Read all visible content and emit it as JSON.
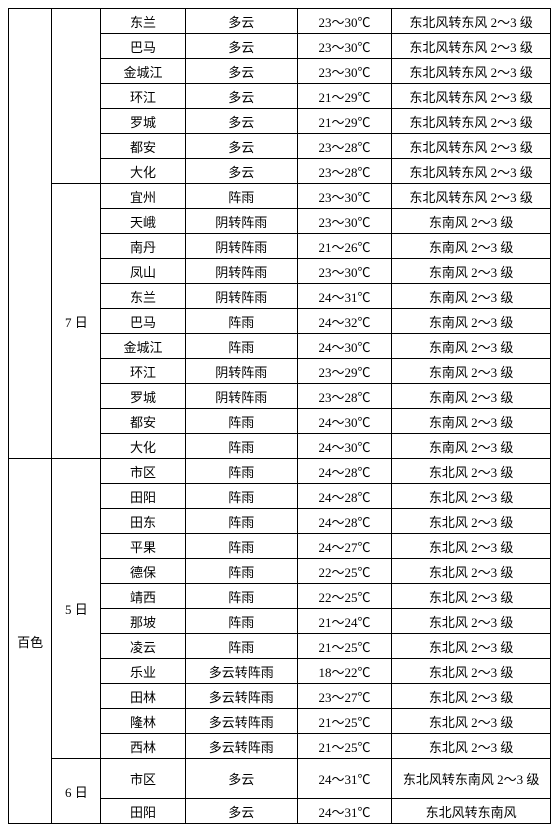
{
  "rows": [
    {
      "region": "",
      "day": "",
      "location": "东兰",
      "weather": "多云",
      "temp": "23～30℃",
      "wind": "东北风转东风 2～3 级"
    },
    {
      "region": "",
      "day": "",
      "location": "巴马",
      "weather": "多云",
      "temp": "23～30℃",
      "wind": "东北风转东风 2～3 级"
    },
    {
      "region": "",
      "day": "",
      "location": "金城江",
      "weather": "多云",
      "temp": "23～30℃",
      "wind": "东北风转东风 2～3 级"
    },
    {
      "region": "",
      "day": "",
      "location": "环江",
      "weather": "多云",
      "temp": "21～29℃",
      "wind": "东北风转东风 2～3 级"
    },
    {
      "region": "",
      "day": "",
      "location": "罗城",
      "weather": "多云",
      "temp": "21～29℃",
      "wind": "东北风转东风 2～3 级"
    },
    {
      "region": "",
      "day": "",
      "location": "都安",
      "weather": "多云",
      "temp": "23～28℃",
      "wind": "东北风转东风 2～3 级"
    },
    {
      "region": "",
      "day": "",
      "location": "大化",
      "weather": "多云",
      "temp": "23～28℃",
      "wind": "东北风转东风 2～3 级"
    },
    {
      "region": "",
      "day": "7 日",
      "location": "宜州",
      "weather": "阵雨",
      "temp": "23～30℃",
      "wind": "东北风转东风 2～3 级"
    },
    {
      "region": "",
      "day": "",
      "location": "天峨",
      "weather": "阴转阵雨",
      "temp": "23～30℃",
      "wind": "东南风 2～3 级"
    },
    {
      "region": "",
      "day": "",
      "location": "南丹",
      "weather": "阴转阵雨",
      "temp": "21～26℃",
      "wind": "东南风 2～3 级"
    },
    {
      "region": "",
      "day": "",
      "location": "凤山",
      "weather": "阴转阵雨",
      "temp": "23～30℃",
      "wind": "东南风 2～3 级"
    },
    {
      "region": "",
      "day": "",
      "location": "东兰",
      "weather": "阴转阵雨",
      "temp": "24～31℃",
      "wind": "东南风 2～3 级"
    },
    {
      "region": "",
      "day": "",
      "location": "巴马",
      "weather": "阵雨",
      "temp": "24～32℃",
      "wind": "东南风 2～3 级"
    },
    {
      "region": "",
      "day": "",
      "location": "金城江",
      "weather": "阵雨",
      "temp": "24～30℃",
      "wind": "东南风 2～3 级"
    },
    {
      "region": "",
      "day": "",
      "location": "环江",
      "weather": "阴转阵雨",
      "temp": "23～29℃",
      "wind": "东南风 2～3 级"
    },
    {
      "region": "",
      "day": "",
      "location": "罗城",
      "weather": "阴转阵雨",
      "temp": "23～28℃",
      "wind": "东南风 2～3 级"
    },
    {
      "region": "",
      "day": "",
      "location": "都安",
      "weather": "阵雨",
      "temp": "24～30℃",
      "wind": "东南风 2～3 级"
    },
    {
      "region": "",
      "day": "",
      "location": "大化",
      "weather": "阵雨",
      "temp": "24～30℃",
      "wind": "东南风 2～3 级"
    },
    {
      "region": "百色",
      "day": "5 日",
      "location": "市区",
      "weather": "阵雨",
      "temp": "24～28℃",
      "wind": "东北风 2～3 级"
    },
    {
      "region": "",
      "day": "",
      "location": "田阳",
      "weather": "阵雨",
      "temp": "24～28℃",
      "wind": "东北风 2～3 级"
    },
    {
      "region": "",
      "day": "",
      "location": "田东",
      "weather": "阵雨",
      "temp": "24～28℃",
      "wind": "东北风 2～3 级"
    },
    {
      "region": "",
      "day": "",
      "location": "平果",
      "weather": "阵雨",
      "temp": "24～27℃",
      "wind": "东北风 2～3 级"
    },
    {
      "region": "",
      "day": "",
      "location": "德保",
      "weather": "阵雨",
      "temp": "22～25℃",
      "wind": "东北风 2～3 级"
    },
    {
      "region": "",
      "day": "",
      "location": "靖西",
      "weather": "阵雨",
      "temp": "22～25℃",
      "wind": "东北风 2～3 级"
    },
    {
      "region": "",
      "day": "",
      "location": "那坡",
      "weather": "阵雨",
      "temp": "21～24℃",
      "wind": "东北风 2～3 级"
    },
    {
      "region": "",
      "day": "",
      "location": "凌云",
      "weather": "阵雨",
      "temp": "21～25℃",
      "wind": "东北风 2～3 级"
    },
    {
      "region": "",
      "day": "",
      "location": "乐业",
      "weather": "多云转阵雨",
      "temp": "18～22℃",
      "wind": "东北风 2～3 级"
    },
    {
      "region": "",
      "day": "",
      "location": "田林",
      "weather": "多云转阵雨",
      "temp": "23～27℃",
      "wind": "东北风 2～3 级"
    },
    {
      "region": "",
      "day": "",
      "location": "隆林",
      "weather": "多云转阵雨",
      "temp": "21～25℃",
      "wind": "东北风 2～3 级"
    },
    {
      "region": "",
      "day": "",
      "location": "西林",
      "weather": "多云转阵雨",
      "temp": "21～25℃",
      "wind": "东北风 2～3 级"
    },
    {
      "region": "",
      "day": "6 日",
      "location": "市区",
      "weather": "多云",
      "temp": "24～31℃",
      "wind": "东北风转东南风 2～3 级"
    },
    {
      "region": "",
      "day": "",
      "location": "田阳",
      "weather": "多云",
      "temp": "24～31℃",
      "wind": "东北风转东南风"
    }
  ],
  "spans": {
    "topRegionRowspan": 18,
    "topDayBlankRowspan": 7,
    "day7Rowspan": 11,
    "baiseRegionRowspan": 14,
    "day5Rowspan": 12,
    "day6Rowspan": 2
  }
}
